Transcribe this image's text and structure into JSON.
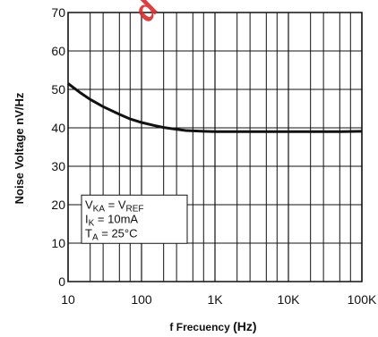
{
  "chart_data": {
    "type": "line",
    "title": "",
    "xlabel": "f Frecuency",
    "xlabel_unit": "(Hz)",
    "ylabel": "Noise Voltage nV/Hz",
    "x_scale": "log",
    "xlim": [
      10,
      100000
    ],
    "ylim": [
      0,
      70
    ],
    "x_tick_values": [
      10,
      100,
      1000,
      10000,
      100000
    ],
    "x_tick_labels": [
      "10",
      "100",
      "1K",
      "10K",
      "100K"
    ],
    "y_tick_values": [
      0,
      10,
      20,
      30,
      40,
      50,
      60,
      70
    ],
    "y_tick_labels": [
      "0",
      "10",
      "20",
      "30",
      "40",
      "50",
      "60",
      "70"
    ],
    "grid": true,
    "series": [
      {
        "x": [
          10,
          15,
          20,
          30,
          50,
          70,
          100,
          150,
          200,
          300,
          400,
          500,
          700,
          1000,
          2000,
          5000,
          10000,
          20000,
          50000,
          100000
        ],
        "y": [
          51.5,
          49.0,
          47.4,
          45.5,
          43.5,
          42.3,
          41.4,
          40.6,
          40.1,
          39.6,
          39.3,
          39.2,
          39.1,
          39.0,
          39.0,
          39.0,
          39.0,
          39.0,
          39.0,
          39.1
        ]
      }
    ],
    "conditions": {
      "line1_main": "V",
      "line1_sub1": "KA",
      "line1_mid": " = V",
      "line1_sub2": "REF",
      "line2_main": "I",
      "line2_sub": "K",
      "line2_rest": " = 10mA",
      "line3_main": "T",
      "line3_sub": "A",
      "line3_rest": " = 25°C"
    },
    "watermark": "d",
    "colors": {
      "line": "#111111",
      "grid": "#111111",
      "watermark": "#d92b2b"
    }
  }
}
